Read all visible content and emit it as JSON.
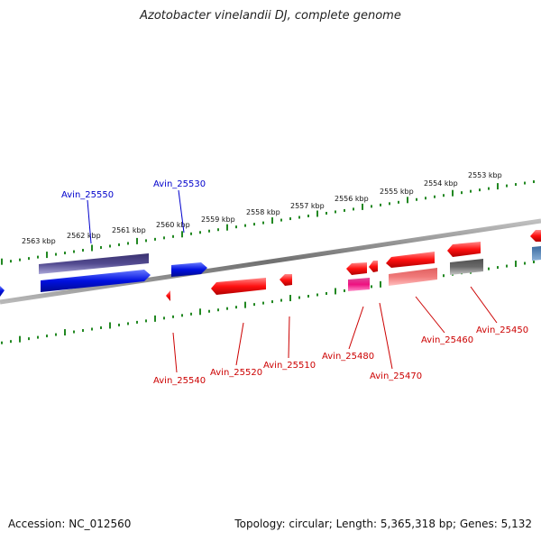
{
  "title": "Azotobacter vinelandii DJ, complete genome",
  "footer": {
    "accession": "Accession: NC_012560",
    "topology": "Topology: circular; Length: 5,365,318 bp; Genes: 5,132"
  },
  "scale_ticks": [
    "2553 kbp",
    "2554 kbp",
    "2555 kbp",
    "2556 kbp",
    "2557 kbp",
    "2558 kbp",
    "2559 kbp",
    "2560 kbp",
    "2561 kbp",
    "2562 kbp",
    "2563 kbp"
  ],
  "gene_labels": {
    "forward": [
      "Avin_25550",
      "Avin_25530"
    ],
    "reverse": [
      "Avin_25540",
      "Avin_25520",
      "Avin_25510",
      "Avin_25480",
      "Avin_25470",
      "Avin_25460",
      "Avin_25450"
    ]
  },
  "colors": {
    "forward_label": "#0000cc",
    "reverse_label": "#cc0000",
    "scale_tick": "#228822",
    "backbone": "#888888"
  }
}
